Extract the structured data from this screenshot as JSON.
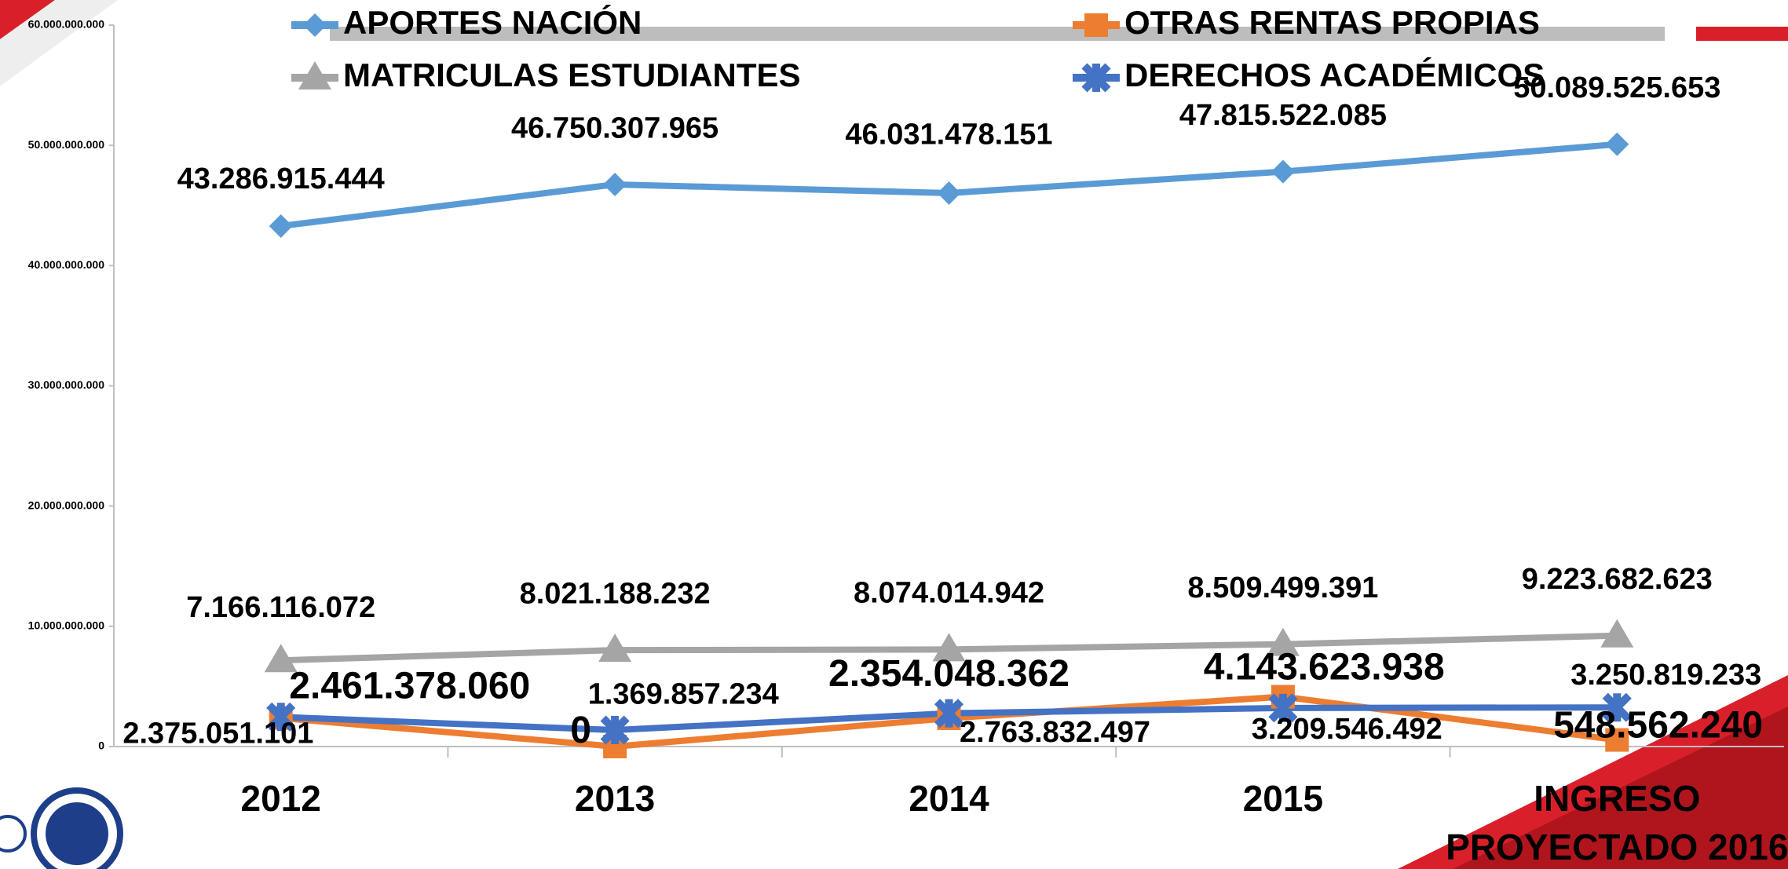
{
  "chart_data": {
    "type": "line",
    "categories": [
      "2012",
      "2013",
      "2014",
      "2015",
      "INGRESO PROYECTADO 2016"
    ],
    "series": [
      {
        "name": "APORTES NACIÓN",
        "color": "#5b9bd5",
        "marker": "diamond",
        "values": [
          43286915444,
          46750307965,
          46031478151,
          47815522085,
          50089525653
        ],
        "value_labels": [
          "43.286.915.444",
          "46.750.307.965",
          "46.031.478.151",
          "47.815.522.085",
          "50.089.525.653"
        ]
      },
      {
        "name": "OTRAS RENTAS PROPIAS",
        "color": "#ed7d31",
        "marker": "square",
        "values": [
          2375051101,
          0,
          2354048362,
          4143623938,
          548562240
        ],
        "value_labels": [
          "2.375.051.101",
          "0",
          "2.354.048.362",
          "4.143.623.938",
          "548.562.240"
        ]
      },
      {
        "name": "MATRICULAS ESTUDIANTES",
        "color": "#a5a5a5",
        "marker": "triangle",
        "values": [
          7166116072,
          8021188232,
          8074014942,
          8509499391,
          9223682623
        ],
        "value_labels": [
          "7.166.116.072",
          "8.021.188.232",
          "8.074.014.942",
          "8.509.499.391",
          "9.223.682.623"
        ]
      },
      {
        "name": "DERECHOS ACADÉMICOS",
        "color": "#4472c4",
        "marker": "star",
        "values": [
          2461378060,
          1369857234,
          2763832497,
          3209546492,
          3250819233
        ],
        "value_labels": [
          "2.461.378.060",
          "1.369.857.234",
          "2.763.832.497",
          "3.209.546.492",
          "3.250.819.233"
        ]
      }
    ],
    "ylim": [
      0,
      60000000000
    ],
    "yticks": [
      0,
      {
        "value": 10000000000,
        "label": "10.000.000.000"
      },
      {
        "value": 20000000000,
        "label": "20.000.000.000"
      },
      {
        "value": 30000000000,
        "label": "30.000.000.000"
      },
      {
        "value": 40000000000,
        "label": "40.000.000.000"
      },
      {
        "value": 50000000000,
        "label": "50.000.000.000"
      },
      {
        "value": 60000000000,
        "label": "60.000.000.000"
      }
    ],
    "grid": false
  }
}
